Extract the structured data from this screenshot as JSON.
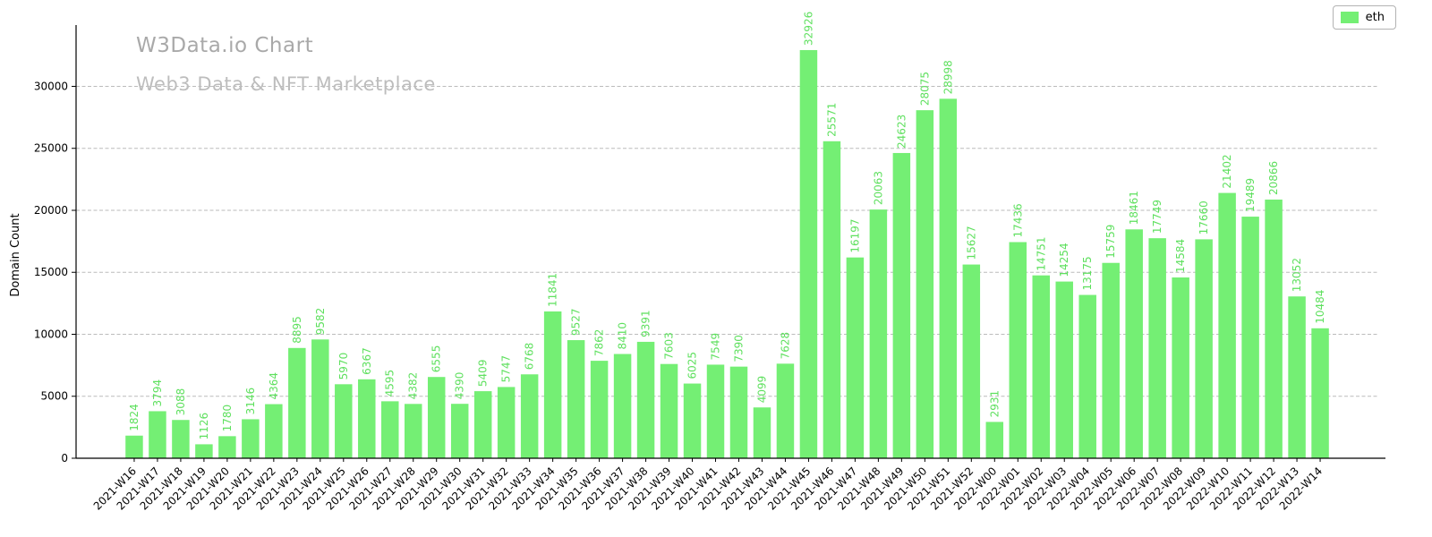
{
  "header": {
    "title": "W3Data.io Chart",
    "subtitle": "Web3 Data & NFT Marketplace"
  },
  "colors": {
    "bar": "#74ef74",
    "bar_label": "#5fe05f",
    "grid": "#bbbbbb",
    "axis": "#000000",
    "title": "#a9a9a9",
    "subtitle": "#bdbdbd"
  },
  "chart_data": {
    "type": "bar",
    "title": "W3Data.io Chart",
    "subtitle": "Web3 Data & NFT Marketplace",
    "xlabel": "",
    "ylabel": "Domain Count",
    "legend_position": "upper right",
    "grid": true,
    "ylim": [
      0,
      34800
    ],
    "yticks": [
      0,
      5000,
      10000,
      15000,
      20000,
      25000,
      30000
    ],
    "categories": [
      "2021-W16",
      "2021-W17",
      "2021-W18",
      "2021-W19",
      "2021-W20",
      "2021-W21",
      "2021-W22",
      "2021-W23",
      "2021-W24",
      "2021-W25",
      "2021-W26",
      "2021-W27",
      "2021-W28",
      "2021-W29",
      "2021-W30",
      "2021-W31",
      "2021-W32",
      "2021-W33",
      "2021-W34",
      "2021-W35",
      "2021-W36",
      "2021-W37",
      "2021-W38",
      "2021-W39",
      "2021-W40",
      "2021-W41",
      "2021-W42",
      "2021-W43",
      "2021-W44",
      "2021-W45",
      "2021-W46",
      "2021-W47",
      "2021-W48",
      "2021-W49",
      "2021-W50",
      "2021-W51",
      "2021-W52",
      "2022-W00",
      "2022-W01",
      "2022-W02",
      "2022-W03",
      "2022-W04",
      "2022-W05",
      "2022-W06",
      "2022-W07",
      "2022-W08",
      "2022-W09",
      "2022-W10",
      "2022-W11",
      "2022-W12",
      "2022-W13",
      "2022-W14"
    ],
    "series": [
      {
        "name": "eth",
        "color": "#74ef74",
        "values": [
          1824,
          3794,
          3088,
          1126,
          1780,
          3146,
          4364,
          8895,
          9582,
          5970,
          6367,
          4595,
          4382,
          6555,
          4390,
          5409,
          5747,
          6768,
          11841,
          9527,
          7862,
          8410,
          9391,
          7603,
          6025,
          7549,
          7390,
          4099,
          7628,
          32926,
          25571,
          16197,
          20063,
          24623,
          28075,
          28998,
          15627,
          2931,
          17436,
          14751,
          14254,
          13175,
          15759,
          18461,
          17749,
          14584,
          17660,
          21402,
          19489,
          20866,
          13052,
          10484
        ]
      }
    ]
  }
}
